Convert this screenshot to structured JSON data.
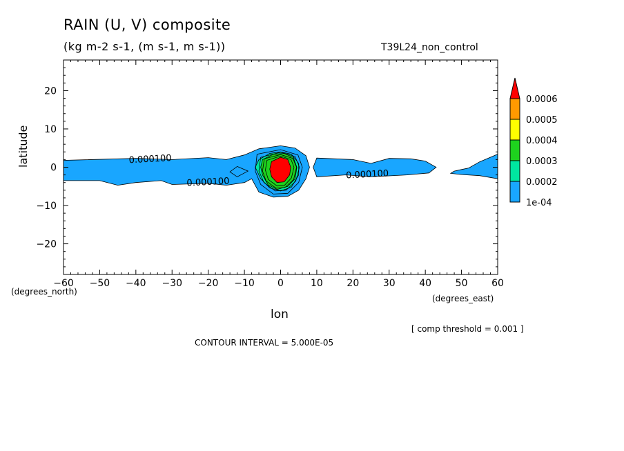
{
  "header": {
    "title": "RAIN (U, V) composite",
    "units": "(kg m-2 s-1, (m s-1, m s-1))",
    "run_name": "T39L24_non_control"
  },
  "footer": {
    "threshold_note": "[ comp threshold = 0.001 ]",
    "contour_interval": "CONTOUR INTERVAL = 5.000E-05"
  },
  "chart_data": {
    "type": "heatmap",
    "title": "RAIN (U, V) composite",
    "subtitle": "(kg m-2 s-1, (m s-1, m s-1))",
    "xlabel": "lon",
    "ylabel": "latitude",
    "x_unit_label": "(degrees_east)",
    "y_unit_label": "(degrees_north)",
    "xlim": [
      -60,
      60
    ],
    "ylim": [
      -28,
      28
    ],
    "x_ticks": [
      -60,
      -50,
      -40,
      -30,
      -20,
      -10,
      0,
      10,
      20,
      30,
      40,
      50,
      60
    ],
    "x_tick_labels": [
      "−60",
      "−50",
      "−40",
      "−30",
      "−20",
      "−10",
      "0",
      "10",
      "20",
      "30",
      "40",
      "50",
      "60"
    ],
    "y_ticks": [
      20,
      10,
      0,
      -10,
      -20
    ],
    "y_tick_labels": [
      "20",
      "10",
      "0",
      "−10",
      "−20"
    ],
    "colorbar": {
      "levels": [
        "1e-04",
        "0.0002",
        "0.0003",
        "0.0004",
        "0.0005",
        "0.0006"
      ],
      "colors": [
        "#19a6ff",
        "#00e6a0",
        "#1ed21e",
        "#ffff00",
        "#ff9900",
        "#ff0000"
      ]
    },
    "contour_labels": [
      {
        "text": "0.000100",
        "lon": -36,
        "lat": 1.4
      },
      {
        "text": "0.000100",
        "lon": -20,
        "lat": -4.6
      },
      {
        "text": "0.000100",
        "lon": 24,
        "lat": -2.6
      }
    ],
    "regions": [
      {
        "level": 0.0001,
        "color": "#19a6ff",
        "lon_lat": [
          [
            -60,
            1.8
          ],
          [
            -40,
            2.3
          ],
          [
            -30,
            2
          ],
          [
            -20,
            2.5
          ],
          [
            -15,
            2
          ],
          [
            -10,
            3.2
          ],
          [
            -6,
            4.8
          ],
          [
            0,
            5.6
          ],
          [
            4,
            5
          ],
          [
            7,
            3
          ],
          [
            8,
            0
          ],
          [
            7,
            -3
          ],
          [
            5,
            -6
          ],
          [
            2,
            -7.6
          ],
          [
            -2,
            -7.8
          ],
          [
            -6,
            -6.5
          ],
          [
            -8,
            -3
          ],
          [
            -10,
            -4
          ],
          [
            -15,
            -4.7
          ],
          [
            -20,
            -4.2
          ],
          [
            -30,
            -4.5
          ],
          [
            -33,
            -3.5
          ],
          [
            -40,
            -4
          ],
          [
            -45,
            -4.7
          ],
          [
            -50,
            -3.5
          ],
          [
            -60,
            -3.5
          ]
        ]
      },
      {
        "level": 0.0001,
        "color": "#19a6ff",
        "lon_lat": [
          [
            10,
            2.4
          ],
          [
            20,
            2
          ],
          [
            25,
            1
          ],
          [
            30,
            2.3
          ],
          [
            36,
            2.2
          ],
          [
            40,
            1.6
          ],
          [
            43,
            0
          ],
          [
            41,
            -1.5
          ],
          [
            35,
            -2
          ],
          [
            25,
            -2.5
          ],
          [
            18,
            -2
          ],
          [
            10,
            -2.5
          ],
          [
            9,
            0
          ]
        ]
      },
      {
        "level": 0.0001,
        "color": "#19a6ff",
        "lon_lat": [
          [
            48,
            -1
          ],
          [
            50,
            -0.6
          ],
          [
            52,
            -0.2
          ],
          [
            55,
            1.4
          ],
          [
            60,
            3.4
          ],
          [
            60,
            -3
          ],
          [
            55,
            -2.2
          ],
          [
            50,
            -1.9
          ],
          [
            47,
            -1.6
          ]
        ]
      },
      {
        "level": 0.0002,
        "color": "#00e6a0",
        "lon_lat": [
          [
            -6,
            2
          ],
          [
            -3,
            3.6
          ],
          [
            0,
            4
          ],
          [
            3,
            3.4
          ],
          [
            5,
            1
          ],
          [
            5,
            -2
          ],
          [
            3,
            -5.2
          ],
          [
            0,
            -6.2
          ],
          [
            -3,
            -5.4
          ],
          [
            -5.5,
            -3
          ],
          [
            -7,
            0
          ]
        ]
      },
      {
        "level": 0.0003,
        "color": "#1ed21e",
        "lon_lat": [
          [
            -5,
            2
          ],
          [
            -2,
            3.4
          ],
          [
            1,
            3.6
          ],
          [
            3.5,
            2.6
          ],
          [
            4.5,
            0
          ],
          [
            4,
            -3
          ],
          [
            2,
            -5
          ],
          [
            -1,
            -5.8
          ],
          [
            -3.5,
            -4.6
          ],
          [
            -5,
            -2
          ],
          [
            -5.5,
            0
          ]
        ]
      },
      {
        "level": 0.0006,
        "color": "#ff0000",
        "lon_lat": [
          [
            -2.5,
            1.5
          ],
          [
            0,
            2.6
          ],
          [
            2,
            2
          ],
          [
            2.8,
            0
          ],
          [
            2.5,
            -2
          ],
          [
            1,
            -3.8
          ],
          [
            -1,
            -4
          ],
          [
            -2.5,
            -2.5
          ],
          [
            -3,
            -0.5
          ]
        ]
      }
    ],
    "contour_lines": [
      [
        [
          -12,
          0.2
        ],
        [
          -9,
          -1
        ],
        [
          -12,
          -2.5
        ],
        [
          -14,
          -1.2
        ],
        [
          -12,
          0.2
        ]
      ],
      [
        [
          -6.5,
          3.4
        ],
        [
          0,
          4.6
        ],
        [
          4.8,
          3.2
        ],
        [
          6,
          0
        ],
        [
          5,
          -4
        ],
        [
          2,
          -6.8
        ],
        [
          -2,
          -7
        ],
        [
          -5.5,
          -4.5
        ],
        [
          -7,
          -1
        ],
        [
          -6.5,
          3.4
        ]
      ],
      [
        [
          -5.5,
          2.6
        ],
        [
          0,
          3.9
        ],
        [
          4,
          2.8
        ],
        [
          5.2,
          0
        ],
        [
          4.2,
          -3.6
        ],
        [
          1.5,
          -6
        ],
        [
          -1.5,
          -6.2
        ],
        [
          -4.6,
          -4
        ],
        [
          -6,
          -1
        ],
        [
          -5.5,
          2.6
        ]
      ],
      [
        [
          -4.5,
          2.2
        ],
        [
          0,
          3.3
        ],
        [
          3.4,
          2.3
        ],
        [
          4.4,
          0
        ],
        [
          3.6,
          -3.2
        ],
        [
          1.2,
          -5.3
        ],
        [
          -1.2,
          -5.5
        ],
        [
          -4,
          -3.6
        ],
        [
          -5,
          -1
        ],
        [
          -4.5,
          2.2
        ]
      ],
      [
        [
          -3.8,
          1.8
        ],
        [
          0,
          2.9
        ],
        [
          2.9,
          2
        ],
        [
          3.7,
          0
        ],
        [
          3,
          -2.8
        ],
        [
          1,
          -4.8
        ],
        [
          -1,
          -4.9
        ],
        [
          -3.4,
          -3.2
        ],
        [
          -4.2,
          -0.8
        ],
        [
          -3.8,
          1.8
        ]
      ]
    ]
  }
}
